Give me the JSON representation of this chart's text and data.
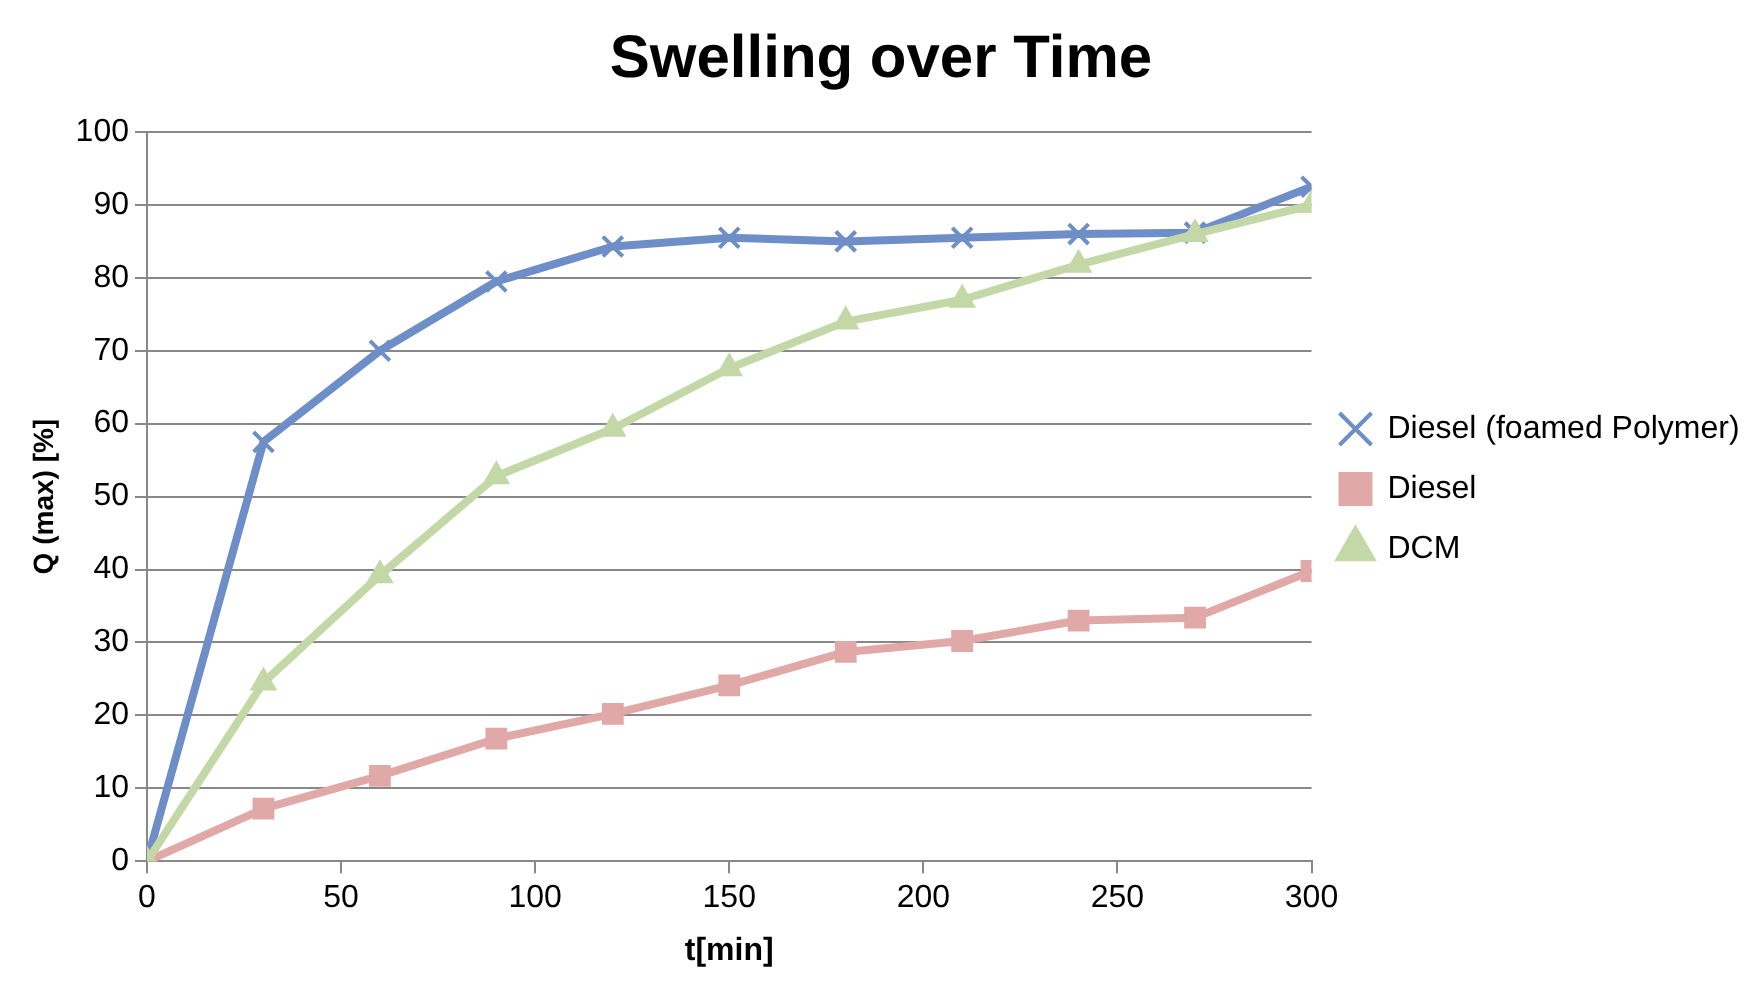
{
  "chart_data": {
    "type": "line",
    "title": "Swelling over Time",
    "xlabel": "t[min]",
    "ylabel": "Q (max) [%]",
    "x": [
      0,
      30,
      60,
      90,
      120,
      150,
      180,
      210,
      240,
      270,
      300
    ],
    "series": [
      {
        "name": "Diesel (foamed Polymer)",
        "color": "#6d8ec7",
        "marker": "cross",
        "values": [
          0,
          57.5,
          70,
          79.5,
          84.3,
          85.5,
          85,
          85.5,
          86,
          86.2,
          92.5
        ]
      },
      {
        "name": "Diesel",
        "color": "#e0a9a8",
        "marker": "square",
        "values": [
          0,
          7.2,
          11.7,
          16.8,
          20.2,
          24.1,
          28.7,
          30.2,
          33,
          33.4,
          39.8
        ]
      },
      {
        "name": "DCM",
        "color": "#c3d8a6",
        "marker": "triangle",
        "values": [
          0,
          24.5,
          39.2,
          52.8,
          59.3,
          67.6,
          74,
          77,
          81.8,
          86,
          90
        ]
      }
    ],
    "xlim": [
      0,
      300
    ],
    "xticks": [
      0,
      50,
      100,
      150,
      200,
      250,
      300
    ],
    "ylim": [
      0,
      100
    ],
    "yticks": [
      0,
      10,
      20,
      30,
      40,
      50,
      60,
      70,
      80,
      90,
      100
    ],
    "grid": "y",
    "legend": "right",
    "line_style": "solid"
  }
}
